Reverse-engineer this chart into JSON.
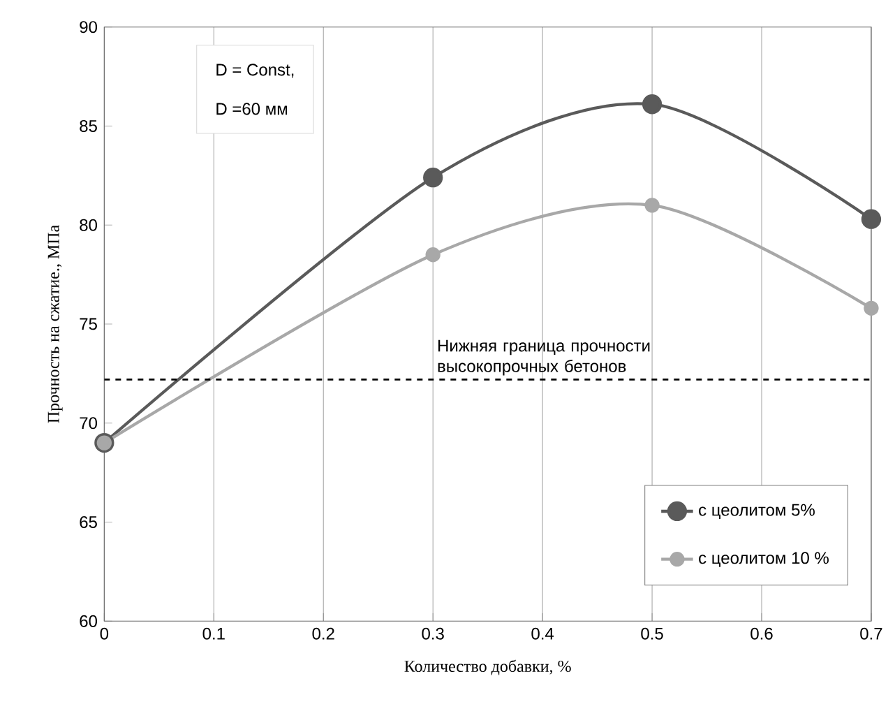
{
  "chart_data": {
    "type": "line",
    "xlabel": "Количество  добавки, %",
    "ylabel": "Прочность на сжатие., МПа",
    "x": [
      0,
      0.3,
      0.5,
      0.7
    ],
    "series": [
      {
        "name": "с цеолитом 5%",
        "color": "#5a5a5a",
        "values": [
          69,
          82.4,
          86.1,
          80.3
        ]
      },
      {
        "name": "с цеолитом 10 %",
        "color": "#a8a8a8",
        "values": [
          69,
          78.5,
          81,
          75.8
        ]
      }
    ],
    "xlim": [
      0,
      0.7
    ],
    "xticks": [
      0,
      0.1,
      0.2,
      0.3,
      0.4,
      0.5,
      0.6,
      0.7
    ],
    "ylim": [
      60,
      90
    ],
    "yticks": [
      60,
      65,
      70,
      75,
      80,
      85,
      90
    ],
    "ref_lines": [
      {
        "axis": "y",
        "value": 72.2,
        "label": "Нижняя граница прочности высокопрочных бетонов",
        "color": "#000000",
        "line_style": "dashed"
      }
    ],
    "annotations": [
      "D = Const,",
      "D =60 мм"
    ],
    "grid": "x",
    "legend": "bottom right",
    "marker": "circle",
    "line_style": "solid"
  }
}
